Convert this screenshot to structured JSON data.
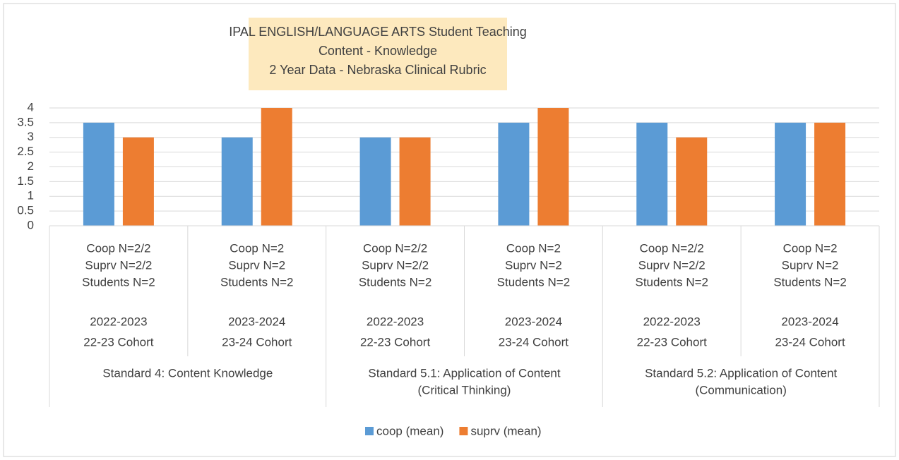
{
  "chart_data": {
    "type": "bar",
    "title": [
      "IPAL ENGLISH/LANGUAGE ARTS  Student Teaching",
      "Content - Knowledge",
      "2 Year Data - Nebraska Clinical Rubric"
    ],
    "categories": [
      [
        "Coop N=2/2",
        "Suprv N=2/2",
        "Students N=2",
        "2022-2023",
        "22-23 Cohort"
      ],
      [
        "Coop N=2",
        "Suprv N=2",
        "Students N=2",
        "2023-2024",
        "23-24 Cohort"
      ],
      [
        "Coop N=2/2",
        "Suprv N=2/2",
        "Students N=2",
        "2022-2023",
        "22-23 Cohort"
      ],
      [
        "Coop N=2",
        "Suprv N=2",
        "Students N=2",
        "2023-2024",
        "23-24 Cohort"
      ],
      [
        "Coop N=2/2",
        "Suprv N=2/2",
        "Students N=2",
        "2022-2023",
        "22-23 Cohort"
      ],
      [
        "Coop N=2",
        "Suprv N=2",
        "Students N=2",
        "2023-2024",
        "23-24 Cohort"
      ]
    ],
    "groups": [
      [
        "Standard 4: Content Knowledge"
      ],
      [
        "Standard 5.1: Application of Content",
        "(Critical Thinking)"
      ],
      [
        "Standard 5.2: Application of Content",
        "(Communication)"
      ]
    ],
    "series": [
      {
        "name": "coop (mean)",
        "color": "#5b9bd5",
        "values": [
          3.5,
          3,
          3,
          3.5,
          3.5,
          3.5
        ]
      },
      {
        "name": "suprv (mean)",
        "color": "#ed7d31",
        "values": [
          3,
          4,
          3,
          4,
          3,
          3.5
        ]
      }
    ],
    "ylim": [
      0,
      4
    ],
    "yticks": [
      0,
      0.5,
      1,
      1.5,
      2,
      2.5,
      3,
      3.5,
      4
    ],
    "grid": true,
    "legend": "bottom"
  }
}
